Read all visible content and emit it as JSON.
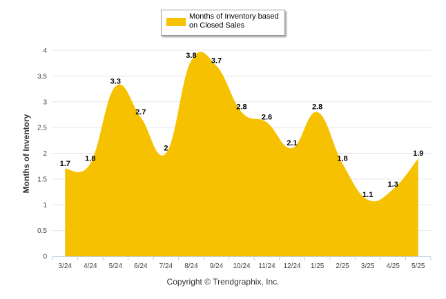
{
  "chart_data": {
    "type": "area",
    "categories": [
      "3/24",
      "4/24",
      "5/24",
      "6/24",
      "7/24",
      "8/24",
      "9/24",
      "10/24",
      "11/24",
      "12/24",
      "1/25",
      "2/25",
      "3/25",
      "4/25",
      "5/25"
    ],
    "series": [
      {
        "name": "Months of Inventory based on Closed Sales",
        "values": [
          1.7,
          1.8,
          3.3,
          2.7,
          2,
          3.8,
          3.7,
          2.8,
          2.6,
          2.1,
          2.8,
          1.8,
          1.1,
          1.3,
          1.9
        ],
        "labels": [
          "1.7",
          "1.8",
          "3.3",
          "2.7",
          "2",
          "3.8",
          "3.7",
          "2.8",
          "2.6",
          "2.1",
          "2.8",
          "1.8",
          "1.1",
          "1.3",
          "1.9"
        ]
      }
    ],
    "ylabel": "Months of Inventory",
    "ylim": [
      0,
      4
    ],
    "yticks": [
      0,
      0.5,
      1,
      1.5,
      2,
      2.5,
      3,
      3.5,
      4
    ],
    "ytick_labels": [
      "0",
      "0.5",
      "1",
      "1.5",
      "2",
      "2.5",
      "3",
      "3.5",
      "4"
    ],
    "grid": true,
    "legend_position": "top-center",
    "colors": {
      "series": "#F6C100",
      "grid": "#E6E6E6"
    }
  },
  "legend": {
    "text": "Months of Inventory based on Closed Sales"
  },
  "footer": {
    "copyright": "Copyright © Trendgraphix, Inc."
  }
}
